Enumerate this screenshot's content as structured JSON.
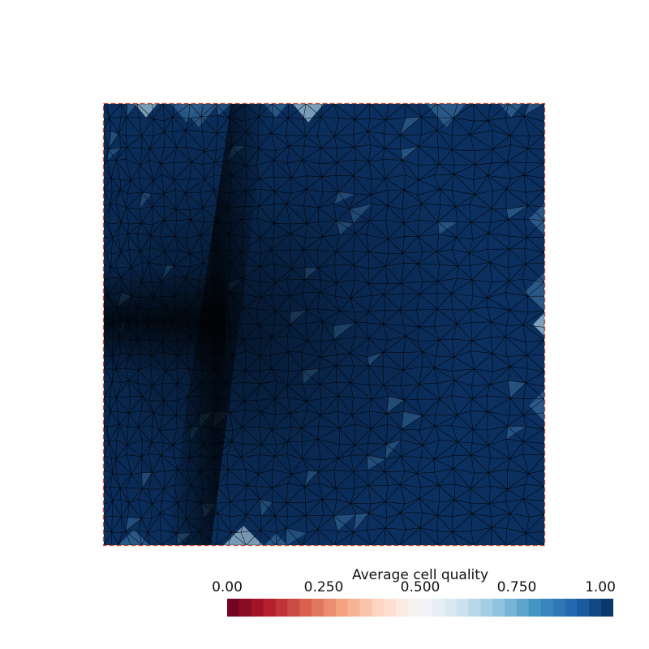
{
  "legend": {
    "title": "Average cell quality",
    "ticks": [
      "0.00",
      "0.250",
      "0.500",
      "0.750",
      "1.00"
    ],
    "range": [
      0,
      1
    ],
    "colormap": "RdBu",
    "bands": 32,
    "stops": [
      "#67001f",
      "#b2182b",
      "#d6604d",
      "#f4a582",
      "#fddbc7",
      "#f7f7f7",
      "#d1e5f0",
      "#92c5de",
      "#4393c3",
      "#2166ac",
      "#053061"
    ]
  },
  "mesh": {
    "face_color": "#0b2f5e",
    "edge_color": "#000000",
    "border_color": "#c8553d",
    "highlight_color": "#2f5f8f",
    "light_highlight_color": "#8fb3cc"
  }
}
